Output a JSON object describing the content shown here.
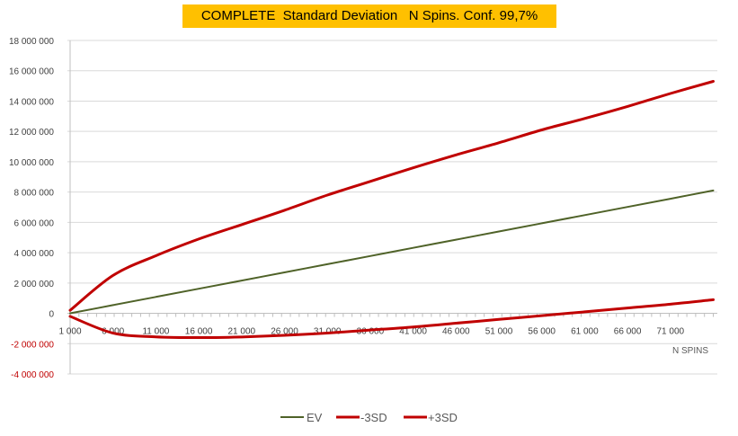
{
  "chart_data": {
    "type": "line",
    "title": "COMPLETE  Standard Deviation   N Spins. Conf. 99,7%",
    "xlabel": "N SPINS",
    "ylabel": "",
    "x": [
      1000,
      6000,
      11000,
      16000,
      21000,
      26000,
      31000,
      36000,
      41000,
      46000,
      51000,
      56000,
      61000,
      66000,
      71000,
      76000
    ],
    "xlim": [
      1000,
      76000
    ],
    "ylim": [
      -4000000,
      18000000
    ],
    "x_ticks": [
      "1 000",
      "6 000",
      "11 000",
      "16 000",
      "21 000",
      "26 000",
      "31 000",
      "36 000",
      "41 000",
      "46 000",
      "51 000",
      "56 000",
      "61 000",
      "66 000",
      "71 000"
    ],
    "x_tick_values": [
      1000,
      6000,
      11000,
      16000,
      21000,
      26000,
      31000,
      36000,
      41000,
      46000,
      51000,
      56000,
      61000,
      66000,
      71000
    ],
    "y_ticks": [
      "18 000 000",
      "16 000 000",
      "14 000 000",
      "12 000 000",
      "10 000 000",
      "8 000 000",
      "6 000 000",
      "4 000 000",
      "2 000 000",
      "0",
      "-2 000 000",
      "-4 000 000"
    ],
    "y_tick_values": [
      18000000,
      16000000,
      14000000,
      12000000,
      10000000,
      8000000,
      6000000,
      4000000,
      2000000,
      0,
      -2000000,
      -4000000
    ],
    "grid": true,
    "legend_position": "bottom",
    "series": [
      {
        "name": "EV",
        "color": "#4f6228",
        "values": [
          0,
          540000,
          1080000,
          1620000,
          2160000,
          2700000,
          3240000,
          3780000,
          4320000,
          4860000,
          5400000,
          5940000,
          6480000,
          7020000,
          7560000,
          8100000
        ]
      },
      {
        "name": "-3SD",
        "color": "#c00000",
        "values": [
          -200000,
          -1300000,
          -1550000,
          -1600000,
          -1560000,
          -1450000,
          -1300000,
          -1100000,
          -900000,
          -650000,
          -400000,
          -150000,
          100000,
          350000,
          600000,
          900000
        ]
      },
      {
        "name": "+3SD",
        "color": "#c00000",
        "values": [
          200000,
          2500000,
          3800000,
          4900000,
          5850000,
          6800000,
          7800000,
          8700000,
          9600000,
          10450000,
          11250000,
          12100000,
          12850000,
          13650000,
          14500000,
          15300000
        ]
      }
    ]
  }
}
